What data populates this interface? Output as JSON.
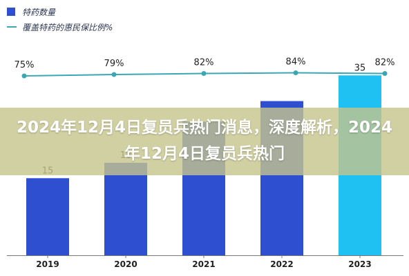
{
  "chart_data": {
    "type": "bar",
    "title": "",
    "categories": [
      "2019",
      "2020",
      "2021",
      "2022",
      "2023"
    ],
    "series": [
      {
        "name": "特药数量",
        "kind": "bar",
        "values": [
          15,
          18,
          26,
          30,
          35
        ],
        "color": "#2f4fd1",
        "highlight_color": "#1fc0f2"
      },
      {
        "name": "覆盖特药的惠民保比例%",
        "kind": "line",
        "values": [
          75,
          79,
          82,
          84,
          82
        ],
        "value_suffix": "%",
        "color": "#3aa7b3"
      }
    ],
    "bar_labels": [
      "15",
      "18",
      "",
      "",
      "35"
    ],
    "line_labels": [
      "75%",
      "79%",
      "82%",
      "84%",
      "82%"
    ],
    "legend": "top-left",
    "grid": false
  },
  "overlay": {
    "title": "2024年12月4日复员兵热门消息，深度解析，2024年12月4日复员兵热门"
  }
}
